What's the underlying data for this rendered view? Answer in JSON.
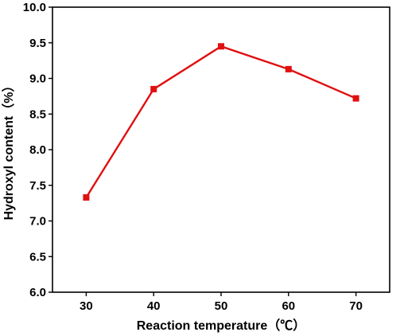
{
  "chart_data": {
    "type": "line",
    "xlabel": "Reaction temperature（℃）",
    "ylabel": "Hydroxyl content（%）",
    "x_ticks": [
      "30",
      "40",
      "50",
      "60",
      "70"
    ],
    "y_ticks": [
      "6.0",
      "6.5",
      "7.0",
      "7.5",
      "8.0",
      "8.5",
      "9.0",
      "9.5",
      "10.0"
    ],
    "xlim": [
      25,
      75
    ],
    "ylim": [
      6.0,
      10.0
    ],
    "grid": false,
    "series": [
      {
        "x": [
          30,
          40,
          50,
          60,
          70
        ],
        "y": [
          7.33,
          8.85,
          9.45,
          9.13,
          8.72
        ],
        "color": "#e01010",
        "marker": "square"
      }
    ]
  }
}
